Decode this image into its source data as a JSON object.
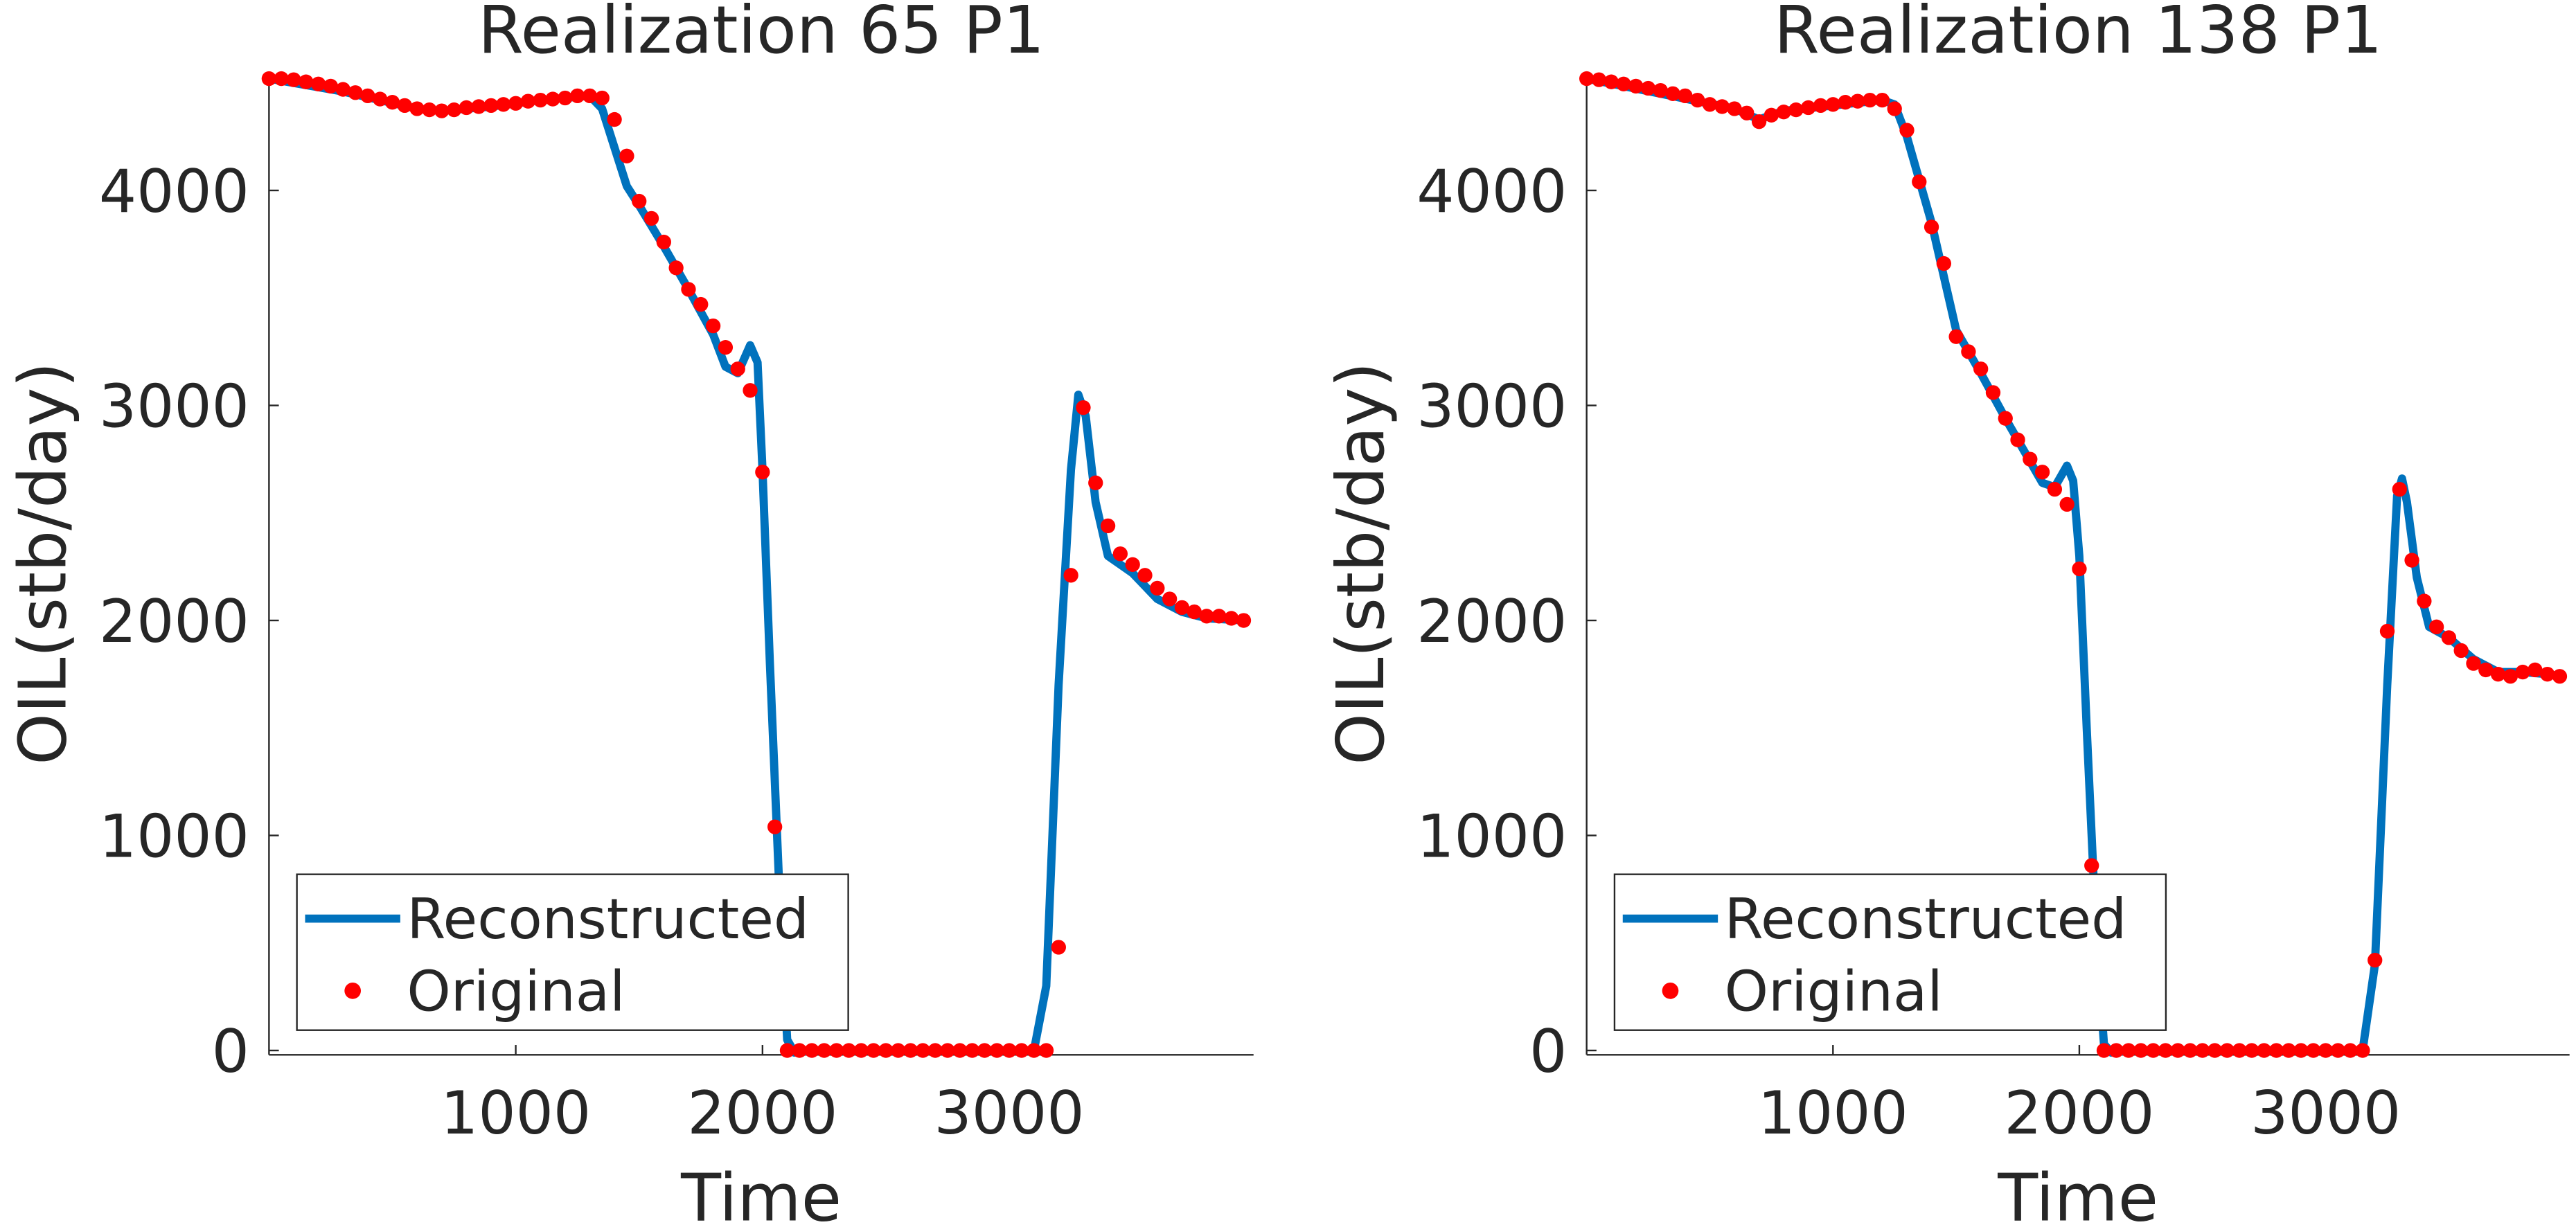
{
  "chart_data": [
    {
      "type": "line",
      "title": "Realization 65 P1",
      "xlabel": "Time",
      "ylabel": "OIL(stb/day)",
      "xlim": [
        0,
        3990
      ],
      "ylim": [
        -20,
        4550
      ],
      "xticks": [
        1000,
        2000,
        3000
      ],
      "yticks": [
        0,
        1000,
        2000,
        3000,
        4000
      ],
      "grid": false,
      "legend": "lower left",
      "series": [
        {
          "name": "Reconstructed",
          "type": "line",
          "color": "#0072bd",
          "x": [
            0,
            300,
            600,
            700,
            900,
            1100,
            1300,
            1350,
            1400,
            1450,
            1500,
            1600,
            1700,
            1800,
            1850,
            1900,
            1950,
            1980,
            2000,
            2030,
            2070,
            2100,
            2130,
            2200,
            3100,
            3150,
            3200,
            3250,
            3280,
            3310,
            3350,
            3400,
            3450,
            3500,
            3600,
            3700,
            3800,
            3950
          ],
          "values": [
            4520,
            4460,
            4380,
            4370,
            4390,
            4420,
            4440,
            4380,
            4200,
            4020,
            3930,
            3740,
            3540,
            3330,
            3180,
            3150,
            3280,
            3200,
            2700,
            1800,
            700,
            50,
            -10,
            0,
            0,
            300,
            1700,
            2700,
            3050,
            2950,
            2550,
            2300,
            2260,
            2220,
            2100,
            2040,
            2010,
            2000
          ]
        },
        {
          "name": "Original",
          "type": "scatter",
          "color": "#ff0000",
          "x": [
            0,
            50,
            100,
            150,
            200,
            250,
            300,
            350,
            400,
            450,
            500,
            550,
            600,
            650,
            700,
            750,
            800,
            850,
            900,
            950,
            1000,
            1050,
            1100,
            1150,
            1200,
            1250,
            1300,
            1350,
            1400,
            1450,
            1500,
            1550,
            1600,
            1650,
            1700,
            1750,
            1800,
            1850,
            1900,
            1950,
            2000,
            2050,
            2100,
            2150,
            2200,
            2250,
            2300,
            2350,
            2400,
            2450,
            2500,
            2550,
            2600,
            2650,
            2700,
            2750,
            2800,
            2850,
            2900,
            2950,
            3000,
            3050,
            3100,
            3150,
            3200,
            3250,
            3300,
            3350,
            3400,
            3450,
            3500,
            3550,
            3600,
            3650,
            3700,
            3750,
            3800,
            3850,
            3900,
            3950
          ],
          "values": [
            4520,
            4520,
            4515,
            4505,
            4495,
            4485,
            4470,
            4455,
            4440,
            4425,
            4410,
            4395,
            4380,
            4375,
            4370,
            4375,
            4385,
            4390,
            4395,
            4400,
            4405,
            4415,
            4420,
            4425,
            4430,
            4440,
            4440,
            4430,
            4330,
            4160,
            3950,
            3870,
            3760,
            3640,
            3540,
            3470,
            3370,
            3270,
            3170,
            3070,
            2690,
            1040,
            0,
            0,
            0,
            0,
            0,
            0,
            0,
            0,
            0,
            0,
            0,
            0,
            0,
            0,
            0,
            0,
            0,
            0,
            0,
            0,
            0,
            0,
            480,
            2210,
            2990,
            2640,
            2440,
            2310,
            2260,
            2210,
            2150,
            2100,
            2060,
            2040,
            2020,
            2020,
            2010,
            2000
          ]
        }
      ]
    },
    {
      "type": "line",
      "title": "Realization 138 P1",
      "xlabel": "Time",
      "ylabel": "OIL(stb/day)",
      "xlim": [
        0,
        3990
      ],
      "ylim": [
        -20,
        4550
      ],
      "xticks": [
        1000,
        2000,
        3000
      ],
      "yticks": [
        0,
        1000,
        2000,
        3000,
        4000
      ],
      "grid": false,
      "legend": "lower left",
      "series": [
        {
          "name": "Reconstructed",
          "type": "line",
          "color": "#0072bd",
          "x": [
            0,
            600,
            700,
            800,
            1200,
            1250,
            1300,
            1400,
            1450,
            1500,
            1600,
            1700,
            1800,
            1850,
            1900,
            1950,
            1975,
            2000,
            2030,
            2070,
            2100,
            2130,
            2200,
            3150,
            3200,
            3250,
            3290,
            3310,
            3330,
            3370,
            3420,
            3500,
            3600,
            3700,
            3800,
            3900,
            3960
          ],
          "values": [
            4520,
            4380,
            4330,
            4370,
            4420,
            4400,
            4250,
            3850,
            3600,
            3350,
            3150,
            2940,
            2740,
            2640,
            2620,
            2720,
            2650,
            2300,
            1500,
            500,
            30,
            -10,
            0,
            0,
            400,
            1700,
            2580,
            2660,
            2550,
            2200,
            1970,
            1920,
            1820,
            1760,
            1760,
            1750,
            1740
          ]
        },
        {
          "name": "Original",
          "type": "scatter",
          "color": "#ff0000",
          "x": [
            0,
            50,
            100,
            150,
            200,
            250,
            300,
            350,
            400,
            450,
            500,
            550,
            600,
            650,
            700,
            750,
            800,
            850,
            900,
            950,
            1000,
            1050,
            1100,
            1150,
            1200,
            1250,
            1300,
            1350,
            1400,
            1450,
            1500,
            1550,
            1600,
            1650,
            1700,
            1750,
            1800,
            1850,
            1900,
            1950,
            2000,
            2050,
            2100,
            2150,
            2200,
            2250,
            2300,
            2350,
            2400,
            2450,
            2500,
            2550,
            2600,
            2650,
            2700,
            2750,
            2800,
            2850,
            2900,
            2950,
            3000,
            3050,
            3100,
            3150,
            3200,
            3250,
            3300,
            3350,
            3400,
            3450,
            3500,
            3550,
            3600,
            3650,
            3700,
            3750,
            3800,
            3850,
            3900,
            3950
          ],
          "values": [
            4520,
            4515,
            4505,
            4495,
            4485,
            4475,
            4465,
            4450,
            4440,
            4420,
            4400,
            4390,
            4380,
            4360,
            4320,
            4350,
            4365,
            4375,
            4385,
            4395,
            4400,
            4410,
            4415,
            4420,
            4420,
            4380,
            4280,
            4040,
            3830,
            3660,
            3320,
            3250,
            3170,
            3060,
            2940,
            2840,
            2750,
            2690,
            2610,
            2540,
            2240,
            860,
            0,
            0,
            0,
            0,
            0,
            0,
            0,
            0,
            0,
            0,
            0,
            0,
            0,
            0,
            0,
            0,
            0,
            0,
            0,
            0,
            0,
            0,
            420,
            1950,
            2610,
            2280,
            2090,
            1970,
            1920,
            1860,
            1800,
            1770,
            1750,
            1740,
            1760,
            1770,
            1750,
            1740
          ]
        }
      ]
    }
  ]
}
